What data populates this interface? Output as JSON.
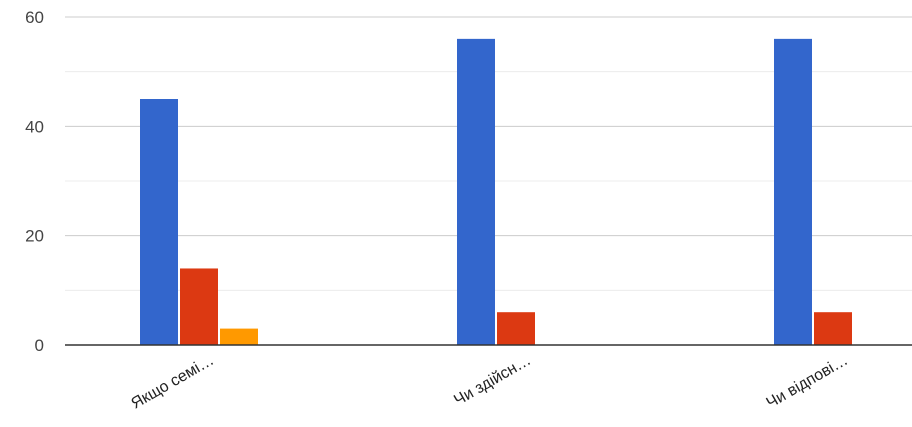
{
  "chart_data": {
    "type": "bar",
    "categories": [
      "Якщо семі…",
      "Чи здійсн…",
      "Чи відпові…"
    ],
    "series": [
      {
        "values": [
          45,
          56,
          56
        ],
        "color": "#3366cc"
      },
      {
        "values": [
          14,
          6,
          6
        ],
        "color": "#dc3912"
      },
      {
        "values": [
          3,
          0,
          0
        ],
        "color": "#ff9900"
      }
    ],
    "ylim": [
      0,
      60
    ],
    "yticks": [
      0,
      20,
      40,
      60
    ],
    "minor_grid": [
      10,
      30,
      50
    ],
    "grid": true,
    "legend": "none",
    "title": "",
    "xlabel": "",
    "ylabel": ""
  }
}
